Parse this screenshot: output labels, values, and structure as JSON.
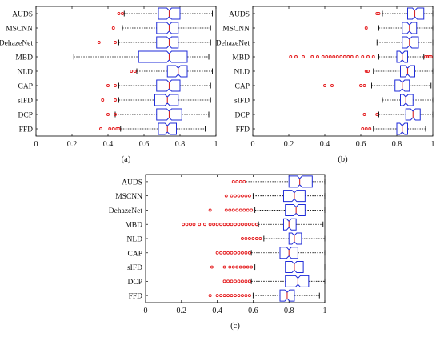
{
  "chart_data": [
    {
      "type": "box",
      "panel_label": "(a)",
      "categories": [
        "AUDS",
        "MSCNN",
        "DehazeNet",
        "MBD",
        "NLD",
        "CAP",
        "sIFD",
        "DCP",
        "FFD"
      ],
      "xlim": [
        0,
        1
      ],
      "x_ticks": [
        "0",
        "0.2",
        "0.4",
        "0.6",
        "0.8",
        "1"
      ],
      "x_tick_values": [
        0,
        0.2,
        0.4,
        0.6,
        0.8,
        1
      ],
      "boxes": [
        {
          "label": "AUDS",
          "whisker_low": 0.49,
          "q1": 0.68,
          "median": 0.74,
          "q3": 0.8,
          "whisker_high": 0.98,
          "outliers": [
            0.46,
            0.48
          ]
        },
        {
          "label": "MSCNN",
          "whisker_low": 0.48,
          "q1": 0.67,
          "median": 0.74,
          "q3": 0.79,
          "whisker_high": 0.97,
          "outliers": [
            0.43
          ]
        },
        {
          "label": "DehazeNet",
          "whisker_low": 0.46,
          "q1": 0.67,
          "median": 0.74,
          "q3": 0.79,
          "whisker_high": 0.97,
          "outliers": [
            0.35,
            0.44
          ]
        },
        {
          "label": "MBD",
          "whisker_low": 0.21,
          "q1": 0.57,
          "median": 0.74,
          "q3": 0.84,
          "whisker_high": 0.96,
          "outliers": []
        },
        {
          "label": "NLD",
          "whisker_low": 0.56,
          "q1": 0.73,
          "median": 0.79,
          "q3": 0.84,
          "whisker_high": 0.98,
          "outliers": [
            0.53,
            0.55
          ]
        },
        {
          "label": "CAP",
          "whisker_low": 0.46,
          "q1": 0.67,
          "median": 0.74,
          "q3": 0.8,
          "whisker_high": 0.97,
          "outliers": [
            0.4,
            0.44
          ]
        },
        {
          "label": "sIFD",
          "whisker_low": 0.46,
          "q1": 0.66,
          "median": 0.73,
          "q3": 0.79,
          "whisker_high": 0.97,
          "outliers": [
            0.37,
            0.44
          ]
        },
        {
          "label": "DCP",
          "whisker_low": 0.44,
          "q1": 0.67,
          "median": 0.74,
          "q3": 0.81,
          "whisker_high": 0.96,
          "outliers": [
            0.4,
            0.44
          ]
        },
        {
          "label": "FFD",
          "whisker_low": 0.47,
          "q1": 0.68,
          "median": 0.73,
          "q3": 0.78,
          "whisker_high": 0.94,
          "outliers": [
            0.36,
            0.41,
            0.43,
            0.45,
            0.46
          ]
        }
      ]
    },
    {
      "type": "box",
      "panel_label": "(b)",
      "categories": [
        "AUDS",
        "MSCNN",
        "DehazeNet",
        "MBD",
        "NLD",
        "CAP",
        "sIFD",
        "DCP",
        "FFD"
      ],
      "xlim": [
        0,
        1
      ],
      "x_ticks": [
        "0",
        "0.2",
        "0.4",
        "0.6",
        "0.8",
        "1"
      ],
      "x_tick_values": [
        0,
        0.2,
        0.4,
        0.6,
        0.8,
        1
      ],
      "boxes": [
        {
          "label": "AUDS",
          "whisker_low": 0.72,
          "q1": 0.86,
          "median": 0.9,
          "q3": 0.95,
          "whisker_high": 1.0,
          "outliers": [
            0.69,
            0.7
          ]
        },
        {
          "label": "MSCNN",
          "whisker_low": 0.7,
          "q1": 0.83,
          "median": 0.87,
          "q3": 0.91,
          "whisker_high": 1.0,
          "outliers": [
            0.63
          ]
        },
        {
          "label": "DehazeNet",
          "whisker_low": 0.69,
          "q1": 0.83,
          "median": 0.87,
          "q3": 0.92,
          "whisker_high": 1.0,
          "outliers": []
        },
        {
          "label": "MBD",
          "whisker_low": 0.7,
          "q1": 0.8,
          "median": 0.83,
          "q3": 0.86,
          "whisker_high": 0.95,
          "outliers": [
            0.21,
            0.24,
            0.28,
            0.33,
            0.36,
            0.39,
            0.41,
            0.43,
            0.45,
            0.47,
            0.49,
            0.51,
            0.53,
            0.55,
            0.58,
            0.61,
            0.64,
            0.67,
            0.96,
            0.97,
            0.98,
            0.99
          ]
        },
        {
          "label": "NLD",
          "whisker_low": 0.67,
          "q1": 0.82,
          "median": 0.86,
          "q3": 0.9,
          "whisker_high": 1.0,
          "outliers": [
            0.63,
            0.64
          ]
        },
        {
          "label": "CAP",
          "whisker_low": 0.66,
          "q1": 0.79,
          "median": 0.83,
          "q3": 0.87,
          "whisker_high": 0.99,
          "outliers": [
            0.4,
            0.44,
            0.6,
            0.62
          ]
        },
        {
          "label": "sIFD",
          "whisker_low": 0.72,
          "q1": 0.82,
          "median": 0.85,
          "q3": 0.89,
          "whisker_high": 1.0,
          "outliers": []
        },
        {
          "label": "DCP",
          "whisker_low": 0.7,
          "q1": 0.85,
          "median": 0.89,
          "q3": 0.93,
          "whisker_high": 1.0,
          "outliers": [
            0.62,
            0.69
          ]
        },
        {
          "label": "FFD",
          "whisker_low": 0.67,
          "q1": 0.8,
          "median": 0.83,
          "q3": 0.86,
          "whisker_high": 0.96,
          "outliers": [
            0.61,
            0.63,
            0.65
          ]
        }
      ]
    },
    {
      "type": "box",
      "panel_label": "(c)",
      "categories": [
        "AUDS",
        "MSCNN",
        "DehazeNet",
        "MBD",
        "NLD",
        "CAP",
        "sIFD",
        "DCP",
        "FFD"
      ],
      "xlim": [
        0,
        1
      ],
      "x_ticks": [
        "0",
        "0.2",
        "0.4",
        "0.6",
        "0.8",
        "1"
      ],
      "x_tick_values": [
        0,
        0.2,
        0.4,
        0.6,
        0.8,
        1
      ],
      "boxes": [
        {
          "label": "AUDS",
          "whisker_low": 0.56,
          "q1": 0.8,
          "median": 0.86,
          "q3": 0.93,
          "whisker_high": 1.0,
          "outliers": [
            0.49,
            0.51,
            0.53,
            0.55
          ]
        },
        {
          "label": "MSCNN",
          "whisker_low": 0.6,
          "q1": 0.77,
          "median": 0.83,
          "q3": 0.89,
          "whisker_high": 1.0,
          "outliers": [
            0.45,
            0.48,
            0.5,
            0.52,
            0.54,
            0.56,
            0.58
          ]
        },
        {
          "label": "DehazeNet",
          "whisker_low": 0.61,
          "q1": 0.78,
          "median": 0.84,
          "q3": 0.89,
          "whisker_high": 1.0,
          "outliers": [
            0.36,
            0.45,
            0.47,
            0.49,
            0.51,
            0.53,
            0.55,
            0.57,
            0.59
          ]
        },
        {
          "label": "MBD",
          "whisker_low": 0.63,
          "q1": 0.77,
          "median": 0.8,
          "q3": 0.84,
          "whisker_high": 0.99,
          "outliers": [
            0.21,
            0.23,
            0.25,
            0.27,
            0.3,
            0.33,
            0.36,
            0.38,
            0.4,
            0.42,
            0.44,
            0.46,
            0.48,
            0.5,
            0.52,
            0.54,
            0.56,
            0.58,
            0.6,
            0.62
          ]
        },
        {
          "label": "NLD",
          "whisker_low": 0.66,
          "q1": 0.8,
          "median": 0.83,
          "q3": 0.87,
          "whisker_high": 1.0,
          "outliers": [
            0.54,
            0.56,
            0.58,
            0.6,
            0.62,
            0.64
          ]
        },
        {
          "label": "CAP",
          "whisker_low": 0.59,
          "q1": 0.75,
          "median": 0.8,
          "q3": 0.85,
          "whisker_high": 1.0,
          "outliers": [
            0.4,
            0.42,
            0.44,
            0.46,
            0.48,
            0.5,
            0.52,
            0.54,
            0.56,
            0.58
          ]
        },
        {
          "label": "sIFD",
          "whisker_low": 0.61,
          "q1": 0.78,
          "median": 0.83,
          "q3": 0.88,
          "whisker_high": 1.0,
          "outliers": [
            0.37,
            0.44,
            0.47,
            0.49,
            0.51,
            0.53,
            0.55,
            0.57,
            0.59
          ]
        },
        {
          "label": "DCP",
          "whisker_low": 0.59,
          "q1": 0.78,
          "median": 0.85,
          "q3": 0.91,
          "whisker_high": 1.0,
          "outliers": [
            0.44,
            0.46,
            0.48,
            0.5,
            0.52,
            0.54,
            0.56,
            0.58
          ]
        },
        {
          "label": "FFD",
          "whisker_low": 0.6,
          "q1": 0.75,
          "median": 0.79,
          "q3": 0.83,
          "whisker_high": 0.97,
          "outliers": [
            0.36,
            0.4,
            0.42,
            0.44,
            0.46,
            0.48,
            0.5,
            0.52,
            0.54,
            0.56,
            0.58
          ]
        }
      ]
    }
  ],
  "style": {
    "box_color": "#1f2bd8",
    "median_color": "#d62728",
    "outlier_color": "#e41a1c",
    "whisker_color": "#000000",
    "axes_color": "#000000",
    "background": "#ffffff"
  }
}
